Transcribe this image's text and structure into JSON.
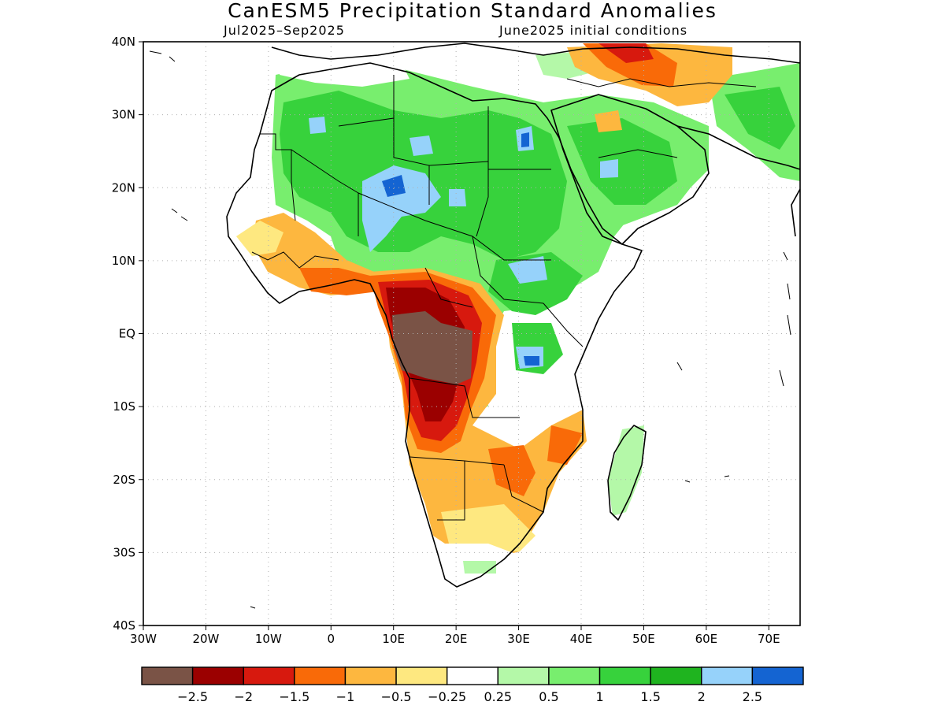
{
  "title": "CanESM5 Precipitation Standard Anomalies",
  "subtitle_left": "Jul2025–Sep2025",
  "subtitle_right": "June2025 initial conditions",
  "map": {
    "lon_range": [
      -30,
      75
    ],
    "lat_range": [
      -40,
      40
    ],
    "lat_ticks": [
      "40N",
      "30N",
      "20N",
      "10N",
      "EQ",
      "10S",
      "20S",
      "30S",
      "40S"
    ],
    "lon_ticks": [
      "30W",
      "20W",
      "10W",
      "0",
      "10E",
      "20E",
      "30E",
      "40E",
      "50E",
      "60E",
      "70E"
    ],
    "grid": "dotted"
  },
  "colorbar": {
    "colors": [
      "#7a5346",
      "#9b0000",
      "#d7190e",
      "#f96a08",
      "#fdb73f",
      "#fee880",
      "#ffffff",
      "#b4f8a8",
      "#78ee6e",
      "#37d23c",
      "#1fb41f",
      "#96d2fa",
      "#1464d2"
    ],
    "labels": [
      "−2.5",
      "−2",
      "−1.5",
      "−1",
      "−0.5",
      "−0.25",
      "0.25",
      "0.5",
      "1",
      "1.5",
      "2",
      "2.5"
    ]
  }
}
